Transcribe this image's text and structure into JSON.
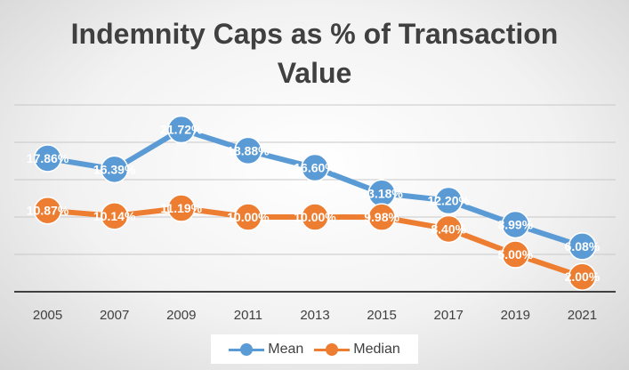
{
  "chart_data": {
    "type": "line",
    "title_line1": "Indemnity Caps as % of Transaction",
    "title_line2": "Value",
    "categories": [
      "2005",
      "2007",
      "2009",
      "2011",
      "2013",
      "2015",
      "2017",
      "2019",
      "2021"
    ],
    "series": [
      {
        "name": "Mean",
        "color": "#5b9bd5",
        "values": [
          17.86,
          16.39,
          21.72,
          18.88,
          16.6,
          13.18,
          12.2,
          8.99,
          6.08
        ],
        "labels": [
          "17.86%",
          "16.39%",
          "21.72%",
          "18.88%",
          "16.60%",
          "13.18%",
          "12.20%",
          "8.99%",
          "6.08%"
        ]
      },
      {
        "name": "Median",
        "color": "#ed7d31",
        "values": [
          10.87,
          10.14,
          11.19,
          10.0,
          10.0,
          9.98,
          8.4,
          5.0,
          2.0
        ],
        "labels": [
          "10.87%",
          "10.14%",
          "11.19%",
          "10.00%",
          "10.00%",
          "9.98%",
          "8.40%",
          "5.00%",
          "2.00%"
        ]
      }
    ],
    "ylim": [
      0,
      25
    ],
    "grid": true,
    "legend_position": "bottom"
  }
}
